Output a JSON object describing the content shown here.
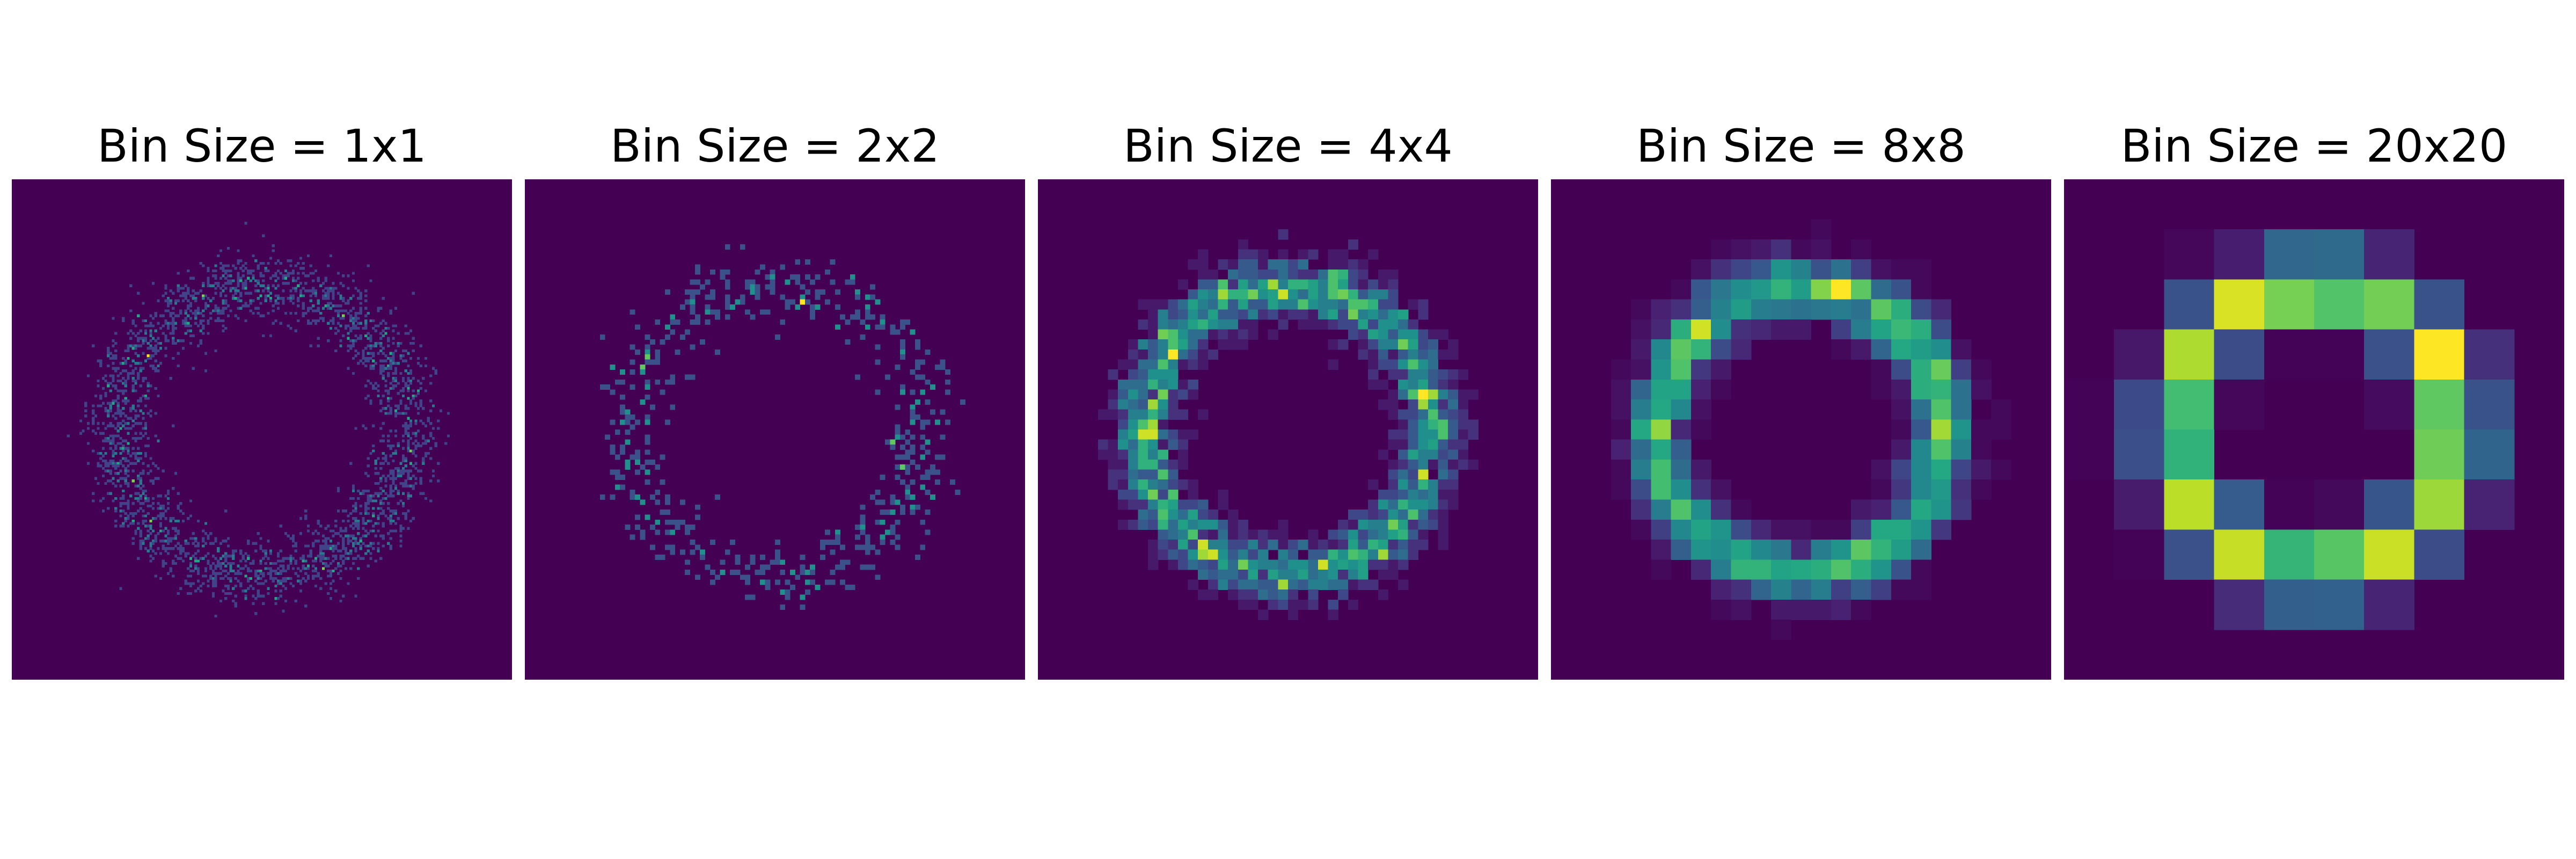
{
  "figure": {
    "background": "#ffffff",
    "colormap": "viridis",
    "colors": {
      "min": "#440154",
      "max": "#fde725"
    }
  },
  "chart_data": [
    {
      "type": "heatmap",
      "title": "Bin Size = 1x1",
      "bin_size": 1,
      "grid": false,
      "axes": "off",
      "xlim": [
        0,
        200
      ],
      "ylim": [
        0,
        200
      ],
      "ring": {
        "center": [
          100,
          100
        ],
        "radius": 58,
        "width": 15,
        "events": 3000
      },
      "dither_seed": 11
    },
    {
      "type": "heatmap",
      "title": "Bin Size = 2x2",
      "bin_size": 2,
      "grid": false,
      "axes": "off",
      "xlim": [
        0,
        200
      ],
      "ylim": [
        0,
        200
      ],
      "ring": {
        "center": [
          100,
          100
        ],
        "radius": 58,
        "width": 15,
        "events": 600
      },
      "dither_seed": 23
    },
    {
      "type": "heatmap",
      "title": "Bin Size = 4x4",
      "bin_size": 4,
      "grid": false,
      "axes": "off",
      "xlim": [
        0,
        200
      ],
      "ylim": [
        0,
        200
      ],
      "ring": {
        "center": [
          100,
          100
        ],
        "radius": 58,
        "width": 15,
        "events": 3000
      },
      "dither_seed": 37
    },
    {
      "type": "heatmap",
      "title": "Bin Size = 8x8",
      "bin_size": 8,
      "grid": false,
      "axes": "off",
      "xlim": [
        0,
        200
      ],
      "ylim": [
        0,
        200
      ],
      "ring": {
        "center": [
          100,
          100
        ],
        "radius": 58,
        "width": 15,
        "events": 3000
      },
      "dither_seed": 51
    },
    {
      "type": "heatmap",
      "title": "Bin Size = 20x20",
      "bin_size": 20,
      "grid": false,
      "axes": "off",
      "xlim": [
        0,
        200
      ],
      "ylim": [
        0,
        200
      ],
      "ring": {
        "center": [
          100,
          100
        ],
        "radius": 58,
        "width": 15,
        "events": 3000
      },
      "dither_seed": 67
    }
  ]
}
